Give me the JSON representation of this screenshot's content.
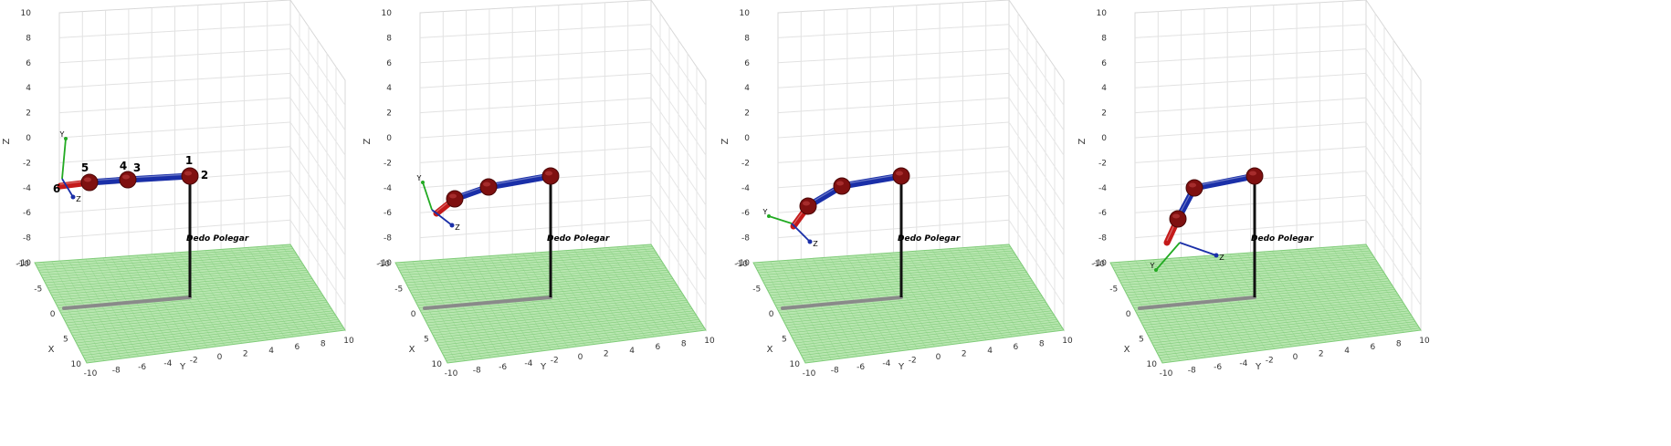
{
  "panels": [
    {
      "finger_label": "Dedo Polegar",
      "frame_axes": [
        "Y",
        "Z"
      ],
      "joint_labels": [
        "1",
        "2",
        "3",
        "4",
        "5",
        "6"
      ],
      "axis_labels": {
        "x": "X",
        "y": "Y",
        "z": "Z"
      },
      "z_ticks": [
        "10",
        "8",
        "6",
        "4",
        "2",
        "0",
        "-2",
        "-4",
        "-6",
        "-8",
        "-10"
      ],
      "x_ticks": [
        "-10",
        "-5",
        "0",
        "5",
        "10"
      ],
      "y_ticks": [
        "-10",
        "-8",
        "-6",
        "-4",
        "-2",
        "0",
        "2",
        "4",
        "6",
        "8",
        "10"
      ]
    },
    {
      "finger_label": "Dedo Polegar",
      "frame_axes": [
        "Y",
        "Z"
      ],
      "joint_labels": [],
      "axis_labels": {
        "x": "X",
        "y": "Y",
        "z": "Z"
      },
      "z_ticks": [
        "10",
        "8",
        "6",
        "4",
        "2",
        "0",
        "-2",
        "-4",
        "-6",
        "-8",
        "-10"
      ],
      "x_ticks": [
        "-10",
        "-5",
        "0",
        "5",
        "10"
      ],
      "y_ticks": [
        "-10",
        "-8",
        "-6",
        "-4",
        "-2",
        "0",
        "2",
        "4",
        "6",
        "8",
        "10"
      ]
    },
    {
      "finger_label": "Dedo Polegar",
      "frame_axes": [
        "Y",
        "Z"
      ],
      "joint_labels": [],
      "axis_labels": {
        "x": "X",
        "y": "Y",
        "z": "Z"
      },
      "z_ticks": [
        "10",
        "8",
        "6",
        "4",
        "2",
        "0",
        "-2",
        "-4",
        "-6",
        "-8",
        "-10"
      ],
      "x_ticks": [
        "-10",
        "-5",
        "0",
        "5",
        "10"
      ],
      "y_ticks": [
        "-10",
        "-8",
        "-6",
        "-4",
        "-2",
        "0",
        "2",
        "4",
        "6",
        "8",
        "10"
      ]
    },
    {
      "finger_label": "Dedo Polegar",
      "frame_axes": [
        "Y",
        "Z"
      ],
      "joint_labels": [],
      "axis_labels": {
        "x": "X",
        "y": "Y",
        "z": "Z"
      },
      "z_ticks": [
        "10",
        "8",
        "6",
        "4",
        "2",
        "0",
        "-2",
        "-4",
        "-6",
        "-8",
        "-10"
      ],
      "x_ticks": [
        "-10",
        "-5",
        "0",
        "5",
        "10"
      ],
      "y_ticks": [
        "-10",
        "-8",
        "-6",
        "-4",
        "-2",
        "0",
        "2",
        "4",
        "6",
        "8",
        "10"
      ]
    }
  ],
  "colors": {
    "link": "#1a2fa8",
    "joint": "#7f1010",
    "floor": "#b8e6b0",
    "floor_grid": "#7fcc78",
    "base_post": "#111111",
    "shadow": "#8a8a8a",
    "frame_x": "#c41a1a",
    "frame_y": "#22aa22",
    "frame_z": "#1a2fa8"
  }
}
